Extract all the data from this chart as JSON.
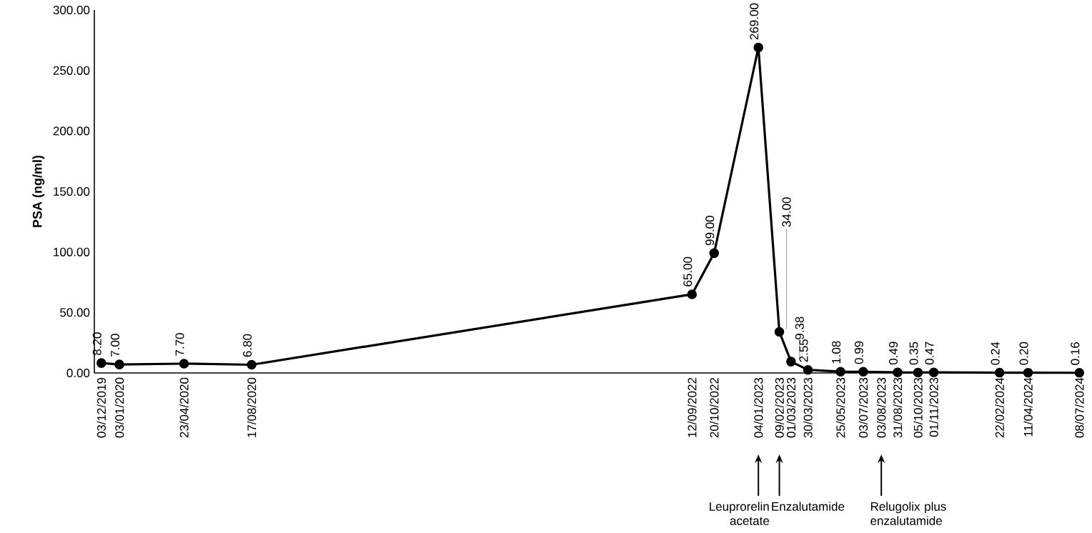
{
  "chart_data": {
    "type": "line",
    "ylabel": "PSA (ng/ml)",
    "color": "#000000",
    "marker": "circle",
    "line_style": "solid",
    "x": [
      "2019-12-03",
      "2020-01-03",
      "2020-04-23",
      "2020-08-17",
      "2022-09-12",
      "2022-10-20",
      "2023-01-04",
      "2023-02-09",
      "2023-03-01",
      "2023-03-30",
      "2023-05-25",
      "2023-07-03",
      "2023-08-31",
      "2023-10-05",
      "2023-11-01",
      "2024-02-22",
      "2024-04-11",
      "2024-07-08"
    ],
    "values": [
      8.2,
      7.0,
      7.7,
      6.8,
      65.0,
      99.0,
      269.0,
      34.0,
      9.38,
      2.55,
      1.08,
      0.99,
      0.49,
      0.35,
      0.47,
      0.24,
      0.2,
      0.16
    ],
    "value_labels": [
      "8.20",
      "7.00",
      "7.70",
      "6.80",
      "65.00",
      "99.00",
      "269.00",
      "34.00",
      "9.38",
      "2.55",
      "1.08",
      "0.99",
      "0.49",
      "0.35",
      "0.47",
      "0.24",
      "0.20",
      "0.16"
    ],
    "xlim": [
      "2019-11-21",
      "2024-07-15"
    ],
    "xticks": [
      {
        "value": "2019-12-03",
        "label": "03/12/2019"
      },
      {
        "value": "2020-01-03",
        "label": "03/01/2020"
      },
      {
        "value": "2020-04-23",
        "label": "23/04/2020"
      },
      {
        "value": "2020-08-17",
        "label": "17/08/2020"
      },
      {
        "value": "2022-09-12",
        "label": "12/09/2022"
      },
      {
        "value": "2022-10-20",
        "label": "20/10/2022"
      },
      {
        "value": "2023-01-04",
        "label": "04/01/2023"
      },
      {
        "value": "2023-02-09",
        "label": "09/02/2023"
      },
      {
        "value": "2023-03-01",
        "label": "01/03/2023"
      },
      {
        "value": "2023-03-30",
        "label": "30/03/2023"
      },
      {
        "value": "2023-05-25",
        "label": "25/05/2023"
      },
      {
        "value": "2023-07-03",
        "label": "03/07/2023"
      },
      {
        "value": "2023-08-03",
        "label": "03/08/2023"
      },
      {
        "value": "2023-08-31",
        "label": "31/08/2023"
      },
      {
        "value": "2023-10-05",
        "label": "05/10/2023"
      },
      {
        "value": "2023-11-01",
        "label": "01/11/2023"
      },
      {
        "value": "2024-02-22",
        "label": "22/02/2024"
      },
      {
        "value": "2024-04-11",
        "label": "11/04/2024"
      },
      {
        "value": "2024-07-08",
        "label": "08/07/2024"
      }
    ],
    "ylim": [
      0,
      300
    ],
    "yticks": [
      {
        "value": 0,
        "label": "0.00"
      },
      {
        "value": 50,
        "label": "50.00"
      },
      {
        "value": 100,
        "label": "100.00"
      },
      {
        "value": 150,
        "label": "150.00"
      },
      {
        "value": 200,
        "label": "200.00"
      },
      {
        "value": 250,
        "label": "250.00"
      },
      {
        "value": 300,
        "label": "300.00"
      }
    ],
    "annotations": [
      "Leuprorelin acetate",
      "Enzalutamide",
      "Relugolix plus enzalutamide"
    ]
  }
}
